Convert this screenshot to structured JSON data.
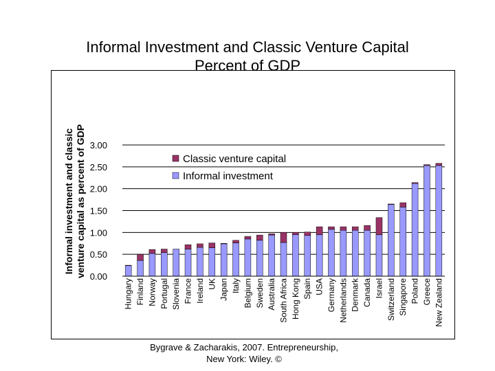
{
  "title_line1": "Informal Investment and Classic Venture Capital",
  "title_line2": "Percent of GDP",
  "source_line1": "Bygrave & Zacharakis, 2007.  Entrepreneurship,",
  "source_line2": "New York: Wiley.  ©",
  "chart_data": {
    "type": "bar",
    "stacked": true,
    "ylabel_line1": "Informal  investment and classic",
    "ylabel_line2": "venture capital as percent of GDP",
    "ylim": [
      0,
      3
    ],
    "yticks": [
      "0.00",
      "0.50",
      "1.00",
      "1.50",
      "2.00",
      "2.50",
      "3.00"
    ],
    "grid": true,
    "legend_position": "top-center",
    "categories": [
      "Hungary",
      "Finland",
      "Norway",
      "Portugal",
      "Slovenia",
      "France",
      "Ireland",
      "UK",
      "Japan",
      "Italy",
      "Belgium",
      "Sweden",
      "Australia",
      "South Africa",
      "Hong Kong",
      "Spain",
      "USA",
      "Germany",
      "Netherlands",
      "Denmark",
      "Canada",
      "Israel",
      "Switzerland",
      "Singapore",
      "Poland",
      "Greece",
      "New Zealand"
    ],
    "series": [
      {
        "name": "Informal investment",
        "color": "#9999ff",
        "values": [
          0.24,
          0.36,
          0.52,
          0.54,
          0.62,
          0.62,
          0.66,
          0.65,
          0.74,
          0.76,
          0.85,
          0.82,
          0.94,
          0.77,
          0.95,
          0.93,
          0.95,
          1.07,
          1.05,
          1.05,
          1.05,
          0.95,
          1.64,
          1.58,
          2.12,
          2.53,
          2.53
        ]
      },
      {
        "name": "Classic venture capital",
        "color": "#993366",
        "values": [
          0.01,
          0.14,
          0.09,
          0.08,
          0.0,
          0.1,
          0.08,
          0.11,
          0.01,
          0.06,
          0.06,
          0.12,
          0.03,
          0.23,
          0.05,
          0.08,
          0.18,
          0.06,
          0.08,
          0.08,
          0.11,
          0.39,
          0.01,
          0.1,
          0.02,
          0.02,
          0.05
        ]
      }
    ]
  }
}
